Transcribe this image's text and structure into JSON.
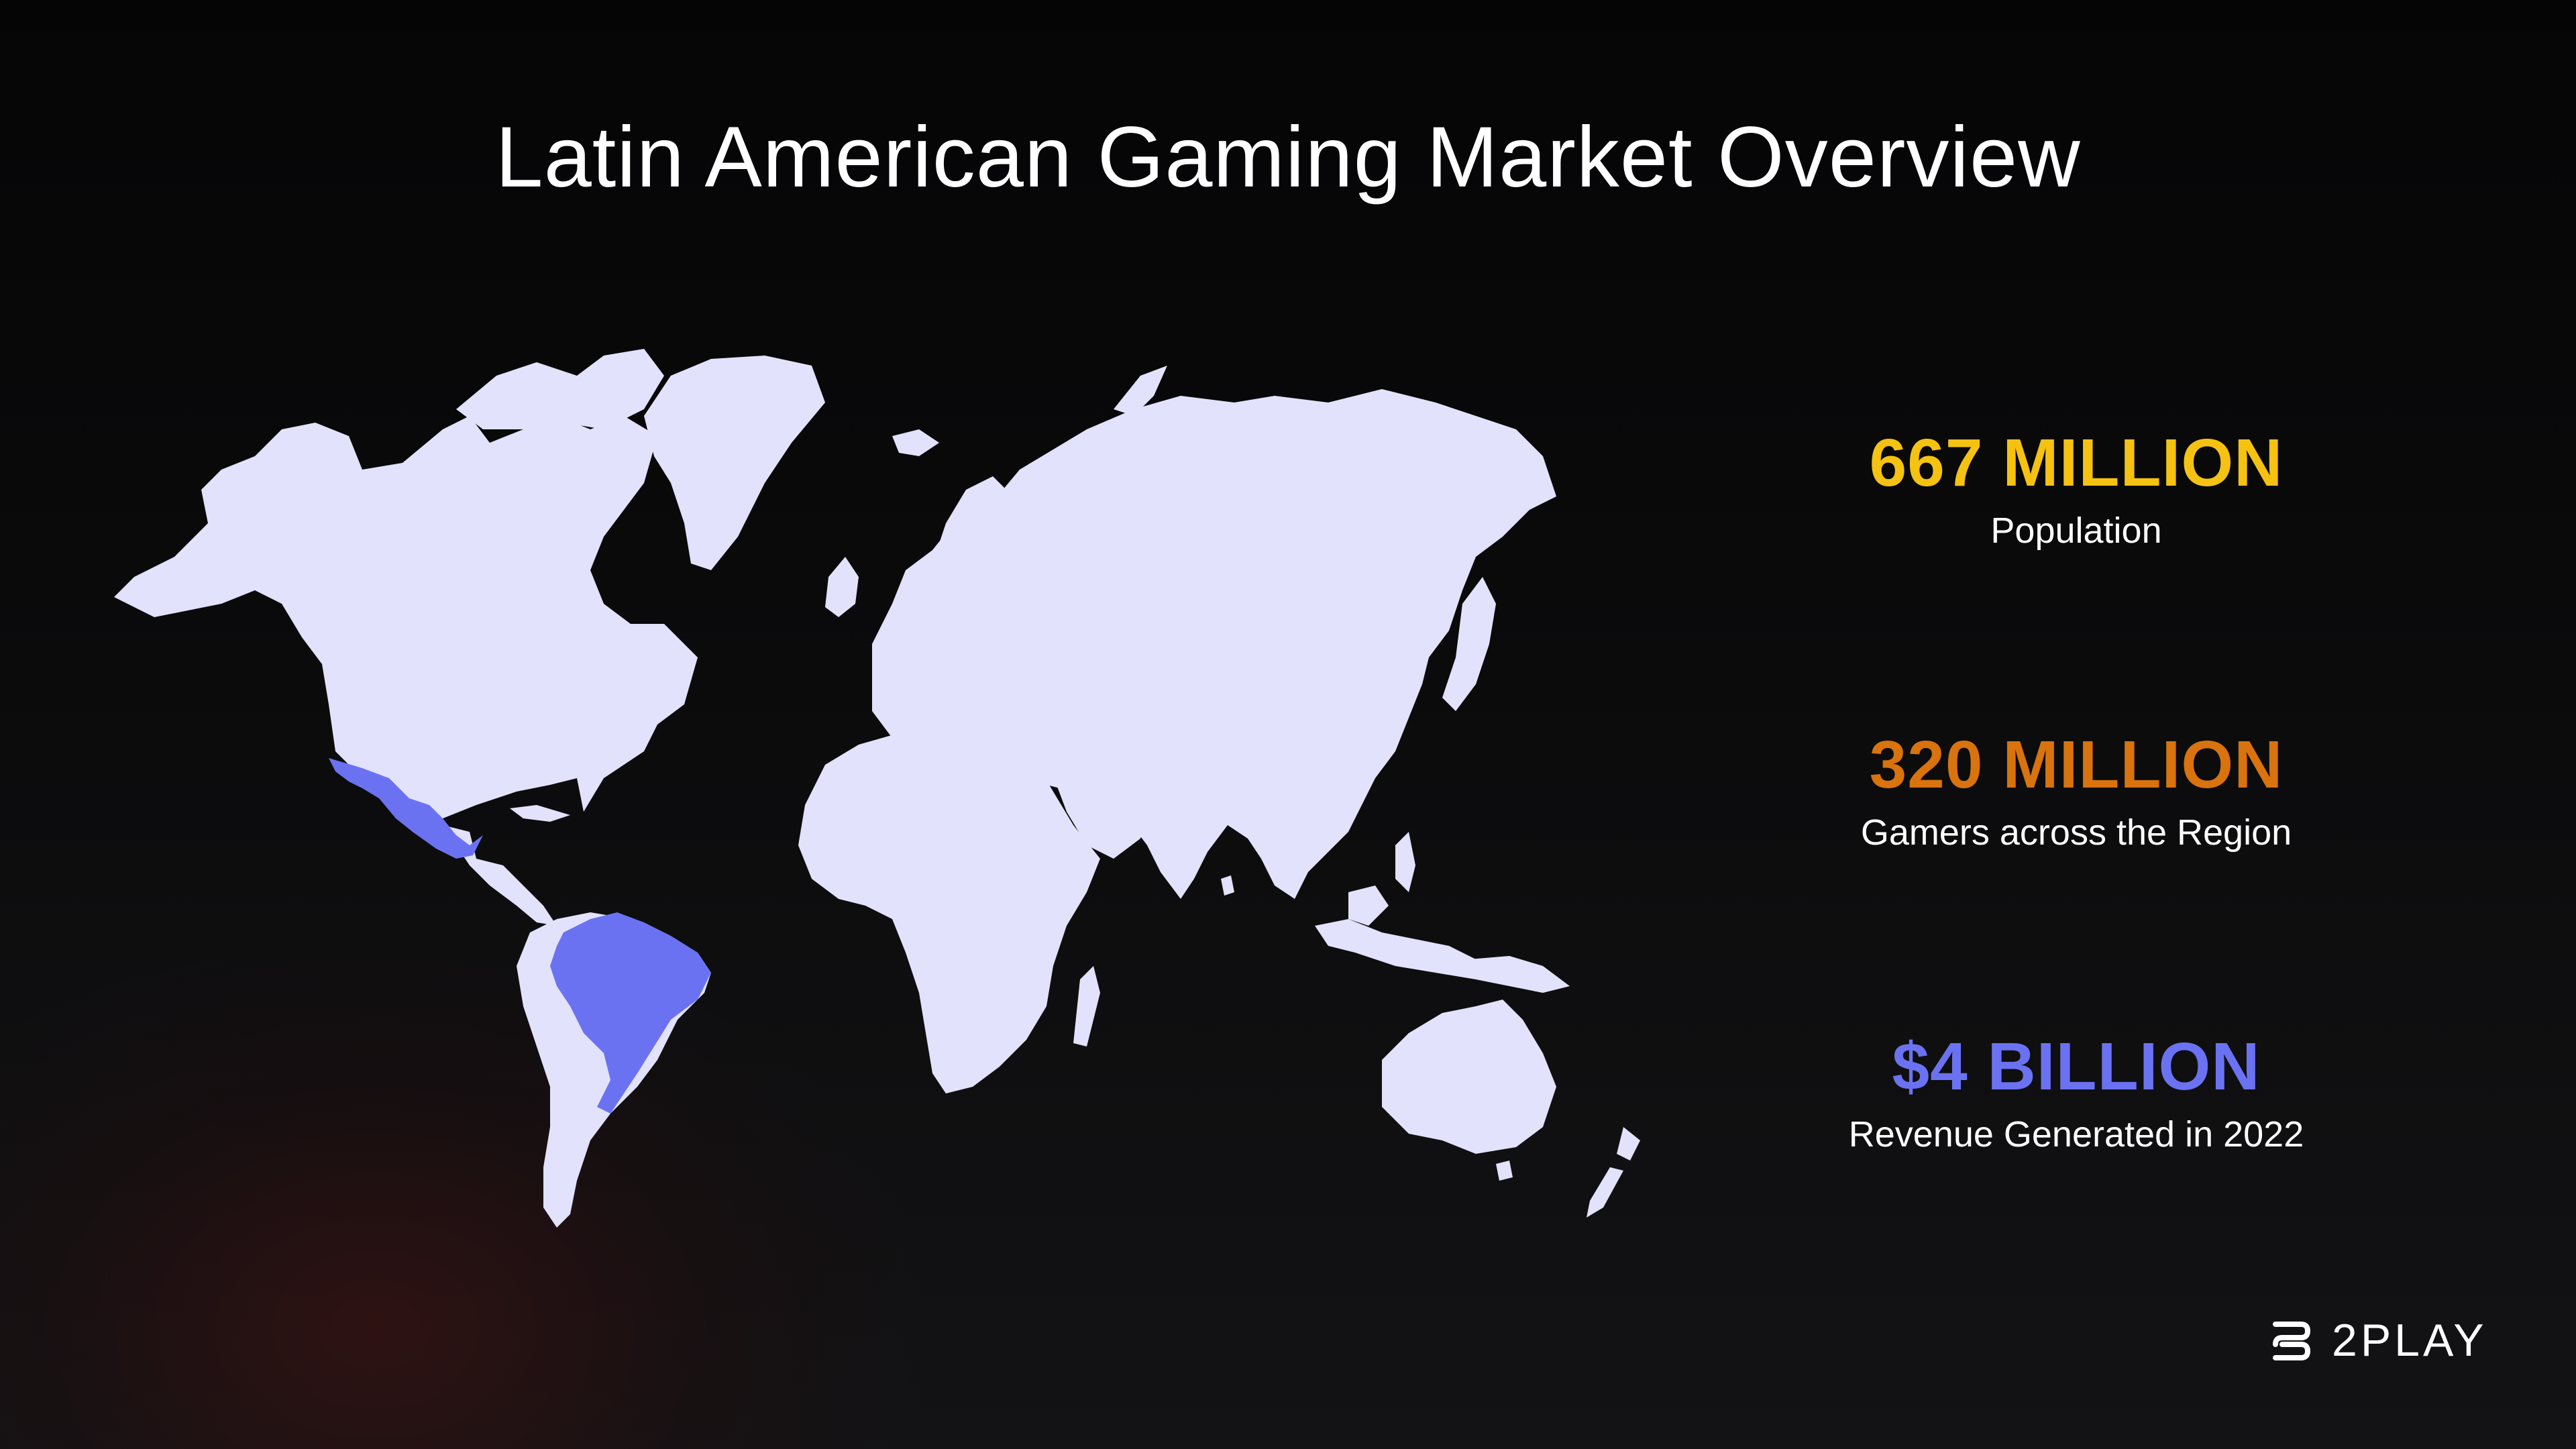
{
  "title": "Latin American Gaming Market Overview",
  "colors": {
    "land": "#e2e2fc",
    "highlight": "#6b72f2",
    "population": "#f5c211",
    "gamers": "#d8730d",
    "revenue": "#6b72f2"
  },
  "map": {
    "highlighted_regions": [
      "Mexico",
      "Brazil"
    ]
  },
  "stats": [
    {
      "value": "667 MILLION",
      "label": "Population"
    },
    {
      "value": "320 MILLION",
      "label": "Gamers across the Region"
    },
    {
      "value": "$4 BILLION",
      "label": "Revenue Generated in 2022"
    }
  ],
  "logo": {
    "text": "2PLAY",
    "icon": "2play-logo-icon"
  }
}
